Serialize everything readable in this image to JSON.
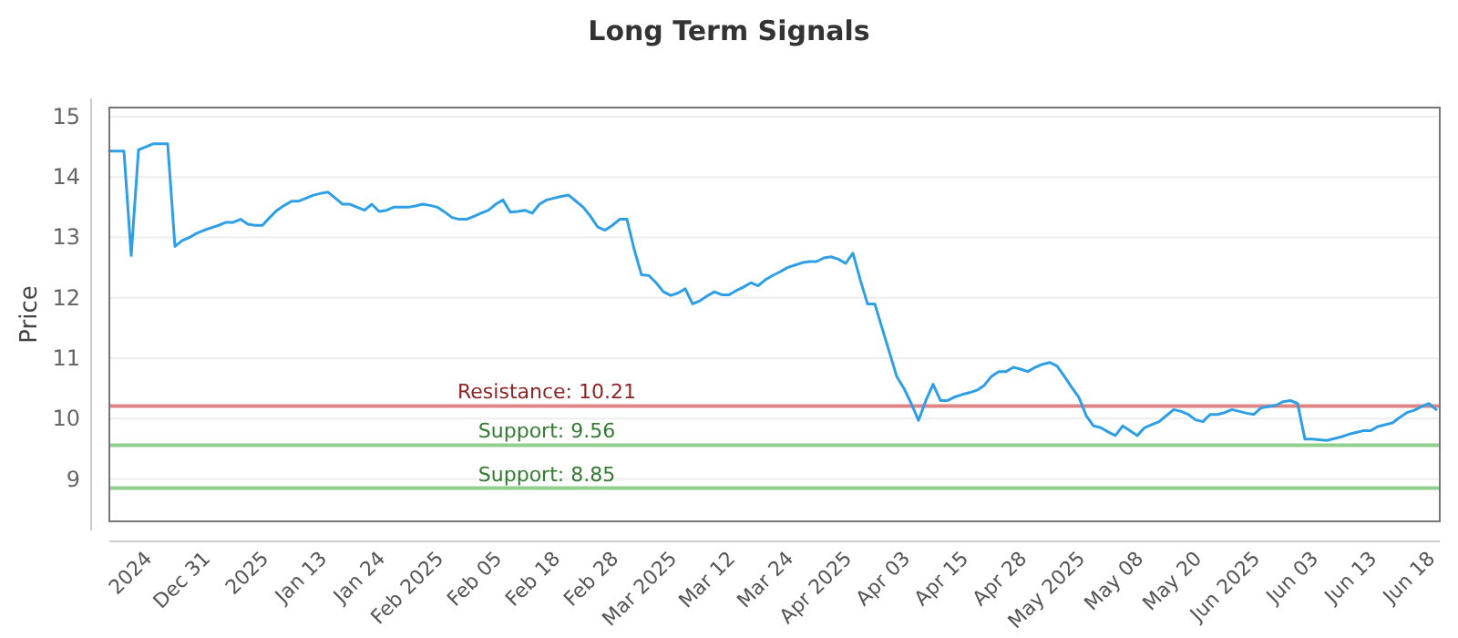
{
  "chart_data": {
    "type": "line",
    "title": "Long Term Signals",
    "ylabel": "Price",
    "categories": [
      null,
      null,
      null,
      null,
      null,
      "2024",
      null,
      null,
      null,
      null,
      null,
      null,
      null,
      "Dec 31",
      null,
      null,
      null,
      null,
      null,
      null,
      null,
      "2025",
      null,
      null,
      null,
      null,
      null,
      null,
      null,
      "Jan 13",
      null,
      null,
      null,
      null,
      null,
      null,
      null,
      "Jan 24",
      null,
      null,
      null,
      null,
      null,
      null,
      null,
      "Feb 2025",
      null,
      null,
      null,
      null,
      null,
      null,
      null,
      "Feb 05",
      null,
      null,
      null,
      null,
      null,
      null,
      null,
      "Feb 18",
      null,
      null,
      null,
      null,
      null,
      null,
      null,
      "Feb 28",
      null,
      null,
      null,
      null,
      null,
      null,
      null,
      "Mar 2025",
      null,
      null,
      null,
      null,
      null,
      null,
      null,
      "Mar 12",
      null,
      null,
      null,
      null,
      null,
      null,
      null,
      "Mar 24",
      null,
      null,
      null,
      null,
      null,
      null,
      null,
      "Apr 2025",
      null,
      null,
      null,
      null,
      null,
      null,
      null,
      "Apr 03",
      null,
      null,
      null,
      null,
      null,
      null,
      null,
      "Apr 15",
      null,
      null,
      null,
      null,
      null,
      null,
      null,
      "Apr 28",
      null,
      null,
      null,
      null,
      null,
      null,
      null,
      "May 2025",
      null,
      null,
      null,
      null,
      null,
      null,
      null,
      "May 08",
      null,
      null,
      null,
      null,
      null,
      null,
      null,
      "May 20",
      null,
      null,
      null,
      null,
      null,
      null,
      null,
      "Jun 2025",
      null,
      null,
      null,
      null,
      null,
      null,
      null,
      "Jun 03",
      null,
      null,
      null,
      null,
      null,
      null,
      null,
      "Jun 13",
      null,
      null,
      null,
      null,
      null,
      null,
      null,
      "Jun 18",
      null
    ],
    "series": [
      {
        "color": "#2e9fe6",
        "values": [
          14.43,
          14.43,
          14.43,
          12.7,
          14.45,
          14.5,
          14.55,
          14.55,
          14.55,
          12.85,
          12.95,
          13.0,
          13.07,
          13.12,
          13.16,
          13.2,
          13.25,
          13.25,
          13.3,
          13.22,
          13.2,
          13.2,
          13.33,
          13.45,
          13.53,
          13.6,
          13.6,
          13.65,
          13.7,
          13.73,
          13.75,
          13.65,
          13.55,
          13.55,
          13.5,
          13.45,
          13.55,
          13.43,
          13.45,
          13.5,
          13.5,
          13.5,
          13.52,
          13.55,
          13.53,
          13.5,
          13.42,
          13.33,
          13.3,
          13.3,
          13.35,
          13.4,
          13.45,
          13.55,
          13.62,
          13.42,
          13.43,
          13.45,
          13.4,
          13.55,
          13.62,
          13.65,
          13.68,
          13.7,
          13.6,
          13.5,
          13.35,
          13.17,
          13.12,
          13.2,
          13.3,
          13.3,
          12.8,
          12.38,
          12.37,
          12.25,
          12.1,
          12.04,
          12.08,
          12.15,
          11.9,
          11.95,
          12.03,
          12.1,
          12.05,
          12.05,
          12.12,
          12.18,
          12.25,
          12.2,
          12.3,
          12.37,
          12.43,
          12.5,
          12.54,
          12.58,
          12.6,
          12.6,
          12.66,
          12.68,
          12.64,
          12.57,
          12.74,
          12.3,
          11.9,
          11.9,
          11.5,
          11.1,
          10.7,
          10.5,
          10.25,
          9.97,
          10.3,
          10.57,
          10.3,
          10.3,
          10.36,
          10.4,
          10.43,
          10.47,
          10.55,
          10.7,
          10.78,
          10.78,
          10.85,
          10.82,
          10.78,
          10.85,
          10.9,
          10.93,
          10.87,
          10.7,
          10.52,
          10.35,
          10.05,
          9.88,
          9.85,
          9.78,
          9.72,
          9.88,
          9.8,
          9.72,
          9.85,
          9.9,
          9.95,
          10.05,
          10.15,
          10.12,
          10.07,
          9.98,
          9.95,
          10.07,
          10.07,
          10.1,
          10.15,
          10.12,
          10.09,
          10.07,
          10.18,
          10.2,
          10.22,
          10.28,
          10.3,
          10.25,
          9.66,
          9.66,
          9.65,
          9.64,
          9.67,
          9.7,
          9.74,
          9.77,
          9.8,
          9.8,
          9.87,
          9.9,
          9.93,
          10.02,
          10.1,
          10.14,
          10.2,
          10.25,
          10.15
        ]
      }
    ],
    "ylim": [
      8.3,
      15.15
    ],
    "yticks": [
      9,
      10,
      11,
      12,
      13,
      14,
      15
    ],
    "grid": "y",
    "marker": "none",
    "line_style": "solid",
    "ref_lines": [
      {
        "axis": "y",
        "value": 10.21,
        "label": "Resistance: 10.21",
        "color": "#e08585"
      },
      {
        "axis": "y",
        "value": 9.56,
        "label": "Support: 9.56",
        "color": "#8fd08f"
      },
      {
        "axis": "y",
        "value": 8.85,
        "label": "Support: 8.85",
        "color": "#8fd08f"
      }
    ]
  }
}
